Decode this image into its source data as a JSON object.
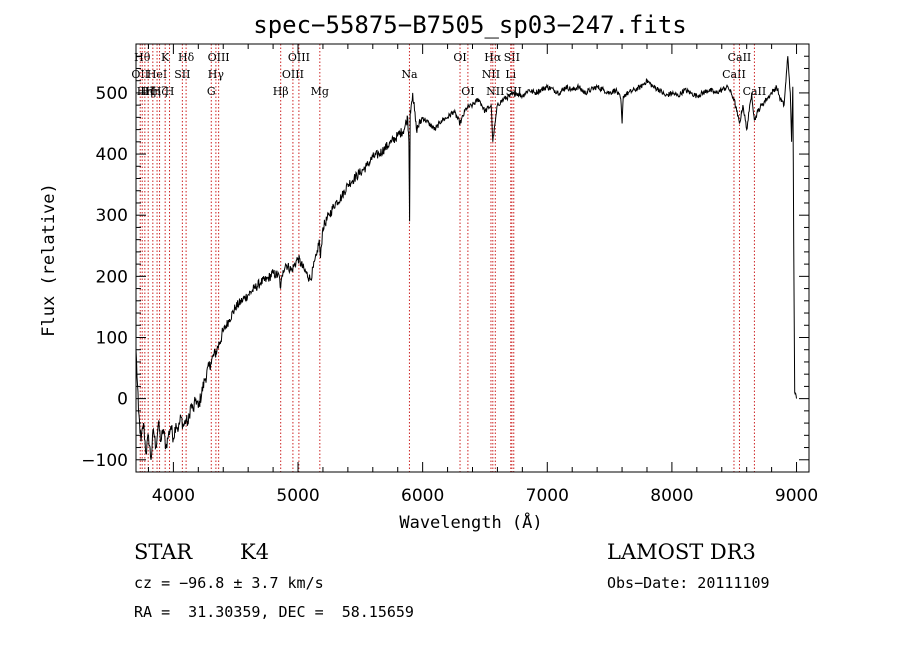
{
  "chart_data": {
    "type": "line",
    "title": "spec−55875−B7505_sp03−247.fits",
    "xlabel": "Wavelength (Å)",
    "ylabel": "Flux (relative)",
    "xlim": [
      3700,
      9100
    ],
    "ylim": [
      -120,
      580
    ],
    "xticks": [
      4000,
      5000,
      6000,
      7000,
      8000,
      9000
    ],
    "yticks": [
      -100,
      0,
      100,
      200,
      300,
      400,
      500
    ],
    "xtick_labels": [
      "4000",
      "5000",
      "6000",
      "7000",
      "8000",
      "9000"
    ],
    "ytick_labels": [
      "−100",
      "0",
      "100",
      "200",
      "300",
      "400",
      "500"
    ],
    "series": [
      {
        "name": "flux",
        "x": [
          3700,
          3720,
          3740,
          3760,
          3780,
          3800,
          3820,
          3840,
          3860,
          3880,
          3900,
          3920,
          3940,
          3960,
          3980,
          4000,
          4020,
          4040,
          4060,
          4080,
          4100,
          4120,
          4140,
          4160,
          4180,
          4200,
          4250,
          4300,
          4350,
          4400,
          4450,
          4500,
          4550,
          4600,
          4650,
          4700,
          4750,
          4800,
          4850,
          4860,
          4880,
          4900,
          4950,
          5000,
          5050,
          5100,
          5150,
          5170,
          5180,
          5200,
          5250,
          5300,
          5350,
          5400,
          5450,
          5500,
          5550,
          5600,
          5650,
          5700,
          5750,
          5800,
          5850,
          5880,
          5890,
          5895,
          5900,
          5920,
          5950,
          6000,
          6050,
          6100,
          6150,
          6200,
          6250,
          6300,
          6350,
          6400,
          6450,
          6500,
          6550,
          6563,
          6600,
          6650,
          6700,
          6750,
          6800,
          6850,
          6900,
          6950,
          7000,
          7050,
          7100,
          7150,
          7200,
          7250,
          7300,
          7350,
          7400,
          7450,
          7500,
          7550,
          7590,
          7600,
          7610,
          7650,
          7700,
          7750,
          7800,
          7850,
          7900,
          7950,
          8000,
          8050,
          8100,
          8150,
          8200,
          8250,
          8300,
          8350,
          8400,
          8450,
          8498,
          8520,
          8542,
          8570,
          8600,
          8620,
          8640,
          8662,
          8690,
          8720,
          8760,
          8800,
          8840,
          8870,
          8900,
          8930,
          8950,
          8960,
          8970,
          8985,
          9000
        ],
        "values": [
          80,
          -20,
          -70,
          -40,
          -90,
          -60,
          -100,
          -50,
          -80,
          -40,
          -70,
          -50,
          -80,
          -60,
          -45,
          -65,
          -40,
          -50,
          -30,
          -45,
          -35,
          -40,
          -10,
          -20,
          0,
          -15,
          30,
          60,
          80,
          110,
          130,
          150,
          160,
          170,
          180,
          190,
          195,
          205,
          200,
          180,
          210,
          220,
          210,
          230,
          210,
          195,
          235,
          260,
          230,
          280,
          300,
          320,
          330,
          350,
          360,
          370,
          380,
          395,
          400,
          410,
          420,
          430,
          440,
          460,
          420,
          290,
          470,
          500,
          440,
          460,
          450,
          440,
          455,
          460,
          470,
          450,
          475,
          480,
          490,
          470,
          480,
          420,
          480,
          490,
          495,
          500,
          495,
          505,
          500,
          505,
          510,
          505,
          500,
          510,
          505,
          510,
          500,
          505,
          510,
          505,
          500,
          505,
          490,
          450,
          495,
          500,
          505,
          510,
          520,
          510,
          505,
          495,
          500,
          495,
          505,
          500,
          495,
          500,
          505,
          500,
          505,
          510,
          490,
          470,
          450,
          480,
          440,
          470,
          500,
          455,
          470,
          480,
          490,
          500,
          510,
          490,
          480,
          560,
          500,
          420,
          510,
          10,
          0
        ]
      }
    ],
    "line_markers": [
      {
        "wavelength": 3734,
        "label": "OII",
        "row": 2
      },
      {
        "wavelength": 3750,
        "label": "Hθ",
        "row": 1
      },
      {
        "wavelength": 3771,
        "label": "Hη",
        "row": 3
      },
      {
        "wavelength": 3798,
        "label": "Hζ",
        "row": 3
      },
      {
        "wavelength": 3835,
        "label": "Hη",
        "row": 3
      },
      {
        "wavelength": 3869,
        "label": "HeI",
        "row": 2
      },
      {
        "wavelength": 3889,
        "label": "Hζ",
        "row": 3
      },
      {
        "wavelength": 3934,
        "label": "K",
        "row": 1
      },
      {
        "wavelength": 3969,
        "label": "H",
        "row": 3
      },
      {
        "wavelength": 4072,
        "label": "SII",
        "row": 2
      },
      {
        "wavelength": 4102,
        "label": "Hδ",
        "row": 1
      },
      {
        "wavelength": 4304,
        "label": "G",
        "row": 3
      },
      {
        "wavelength": 4341,
        "label": "Hγ",
        "row": 2
      },
      {
        "wavelength": 4363,
        "label": "OIII",
        "row": 1
      },
      {
        "wavelength": 4861,
        "label": "Hβ",
        "row": 3
      },
      {
        "wavelength": 4959,
        "label": "OIII",
        "row": 2
      },
      {
        "wavelength": 5007,
        "label": "OIII",
        "row": 1
      },
      {
        "wavelength": 5175,
        "label": "Mg",
        "row": 3
      },
      {
        "wavelength": 5894,
        "label": "Na",
        "row": 2
      },
      {
        "wavelength": 6300,
        "label": "OI",
        "row": 1
      },
      {
        "wavelength": 6363,
        "label": "OI",
        "row": 3
      },
      {
        "wavelength": 6548,
        "label": "NII",
        "row": 2
      },
      {
        "wavelength": 6563,
        "label": "Hα",
        "row": 1
      },
      {
        "wavelength": 6583,
        "label": "NII",
        "row": 3
      },
      {
        "wavelength": 6707,
        "label": "Li",
        "row": 2
      },
      {
        "wavelength": 6716,
        "label": "SII",
        "row": 1
      },
      {
        "wavelength": 6731,
        "label": "SII",
        "row": 3
      },
      {
        "wavelength": 8498,
        "label": "CaII",
        "row": 2
      },
      {
        "wavelength": 8542,
        "label": "CaII",
        "row": 1
      },
      {
        "wavelength": 8662,
        "label": "CaII",
        "row": 3
      }
    ]
  },
  "info": {
    "class": "STAR",
    "subclass": "K4",
    "survey": "LAMOST DR3",
    "cz": "cz = −96.8 ± 3.7 km/s",
    "obs_date": "Obs−Date: 20111109",
    "coords": "RA =  31.30359, DEC =  58.15659"
  }
}
